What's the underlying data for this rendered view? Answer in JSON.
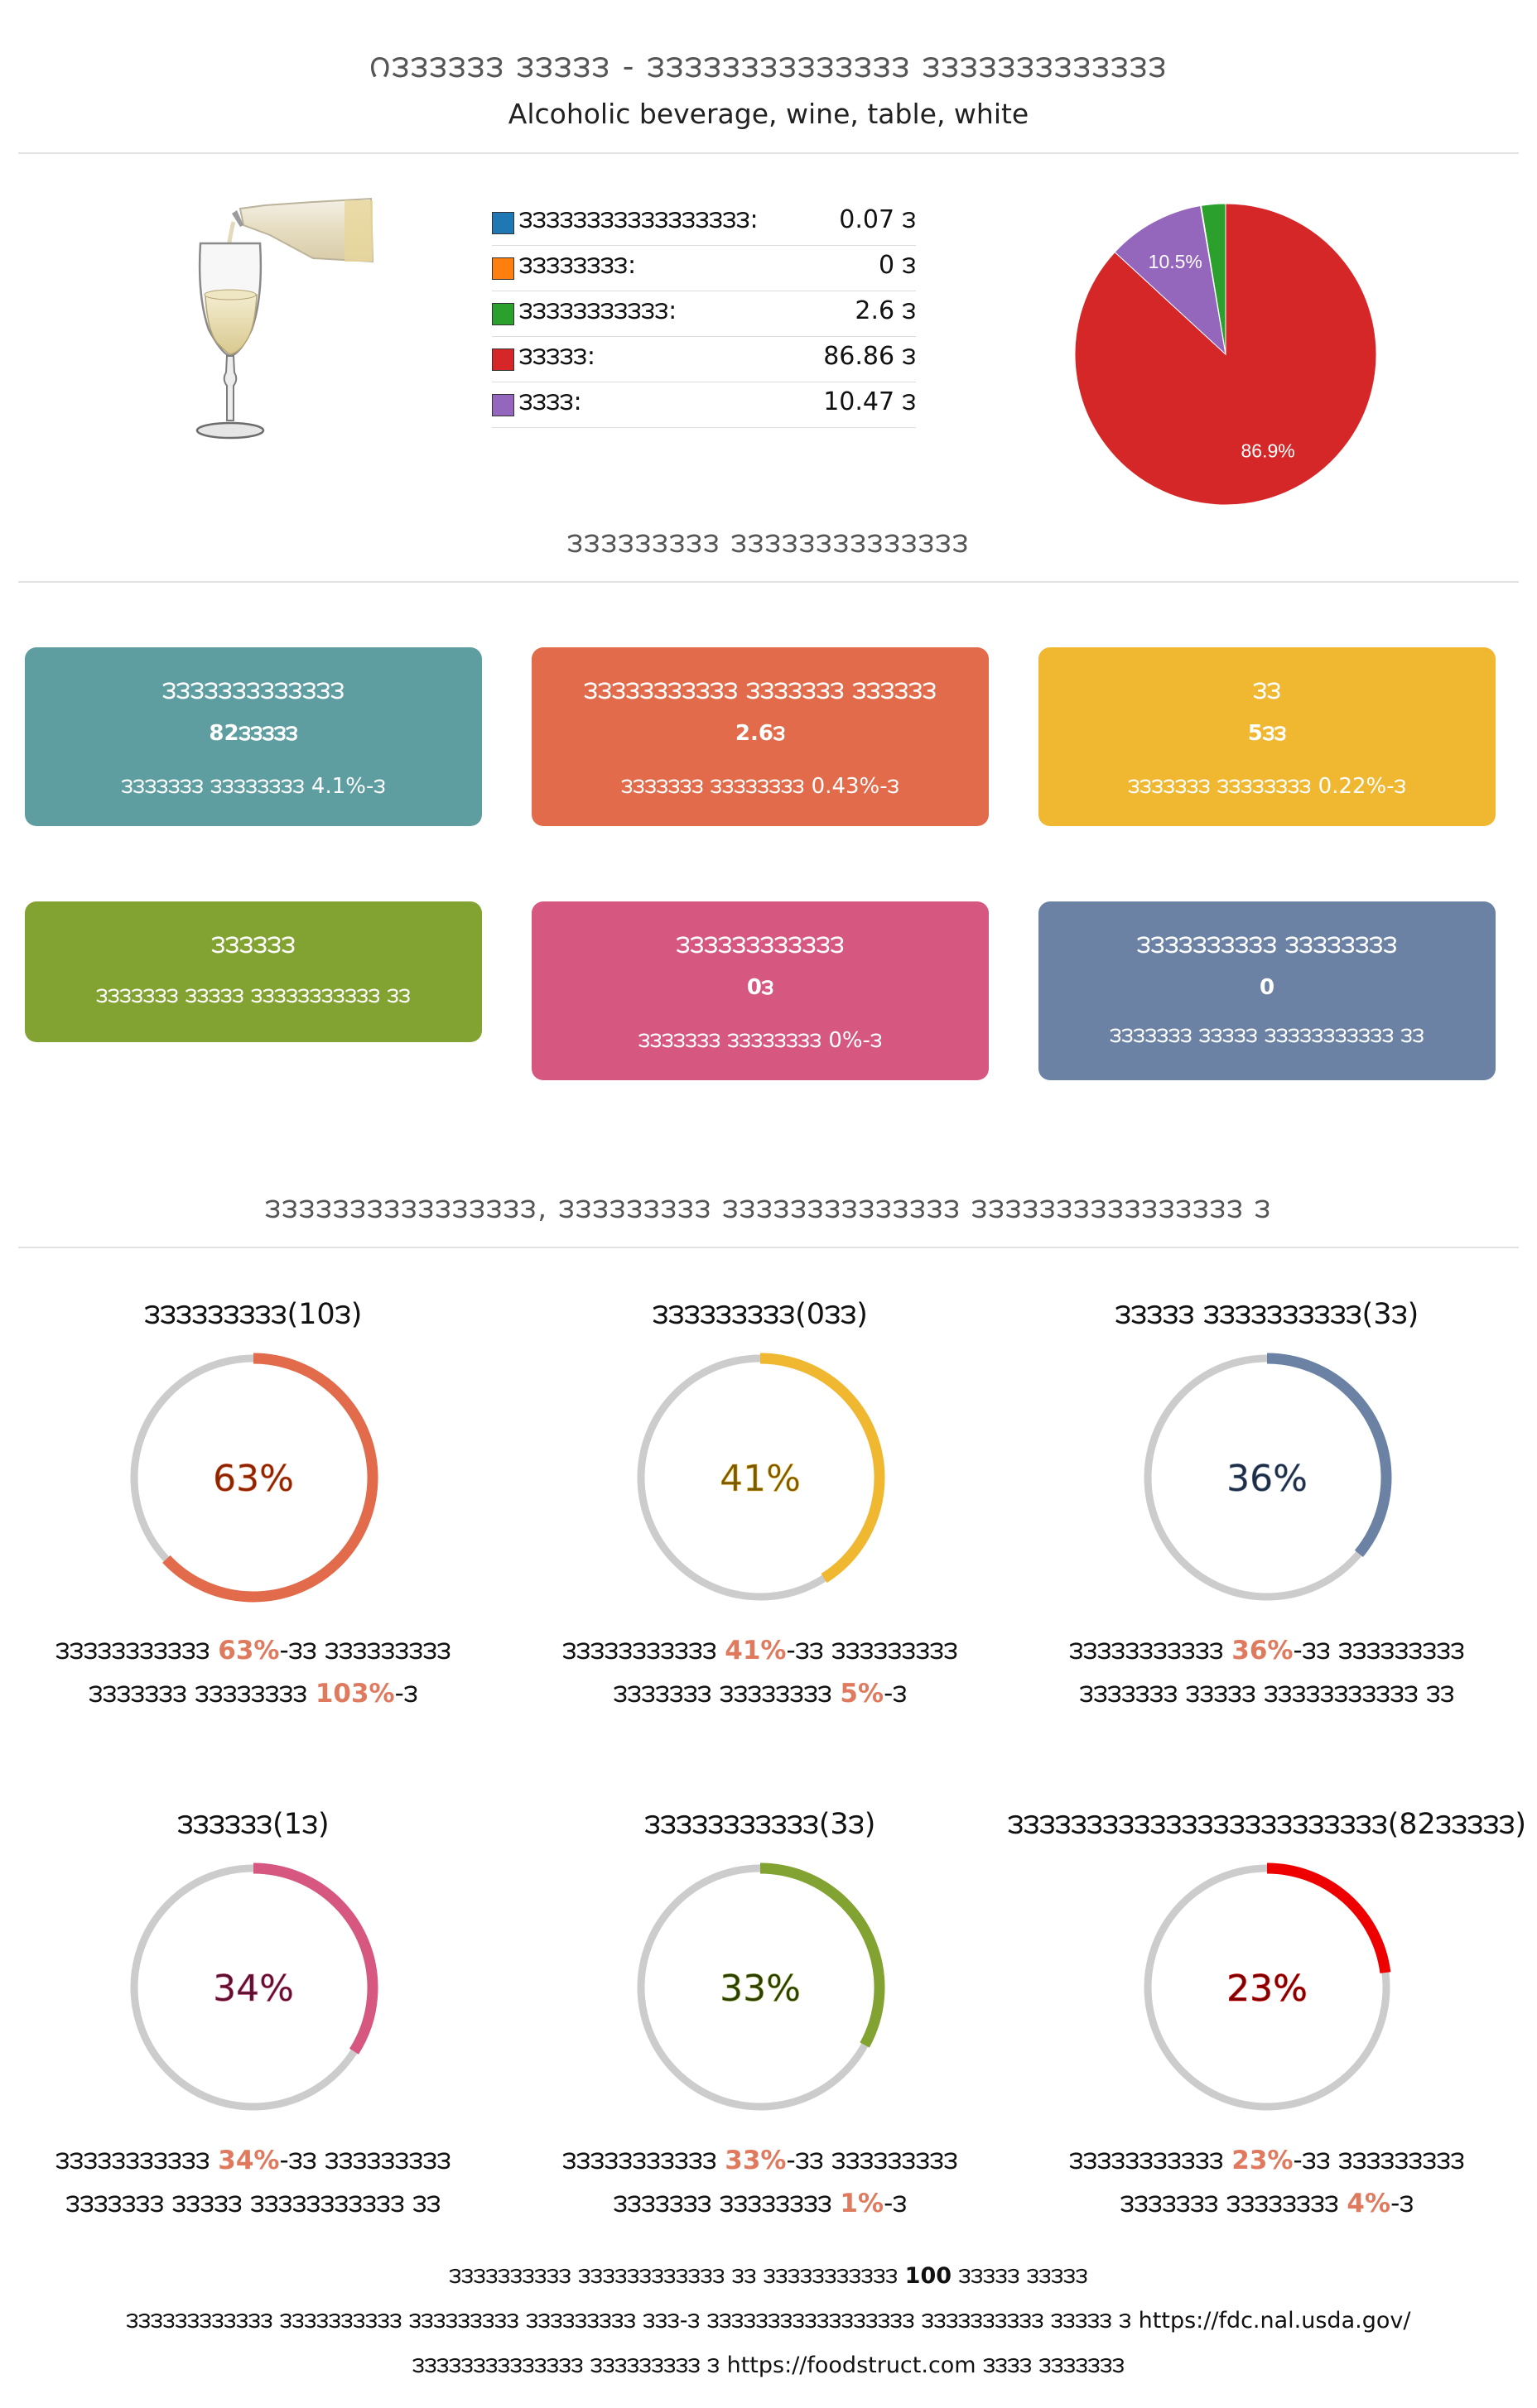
{
  "header": {
    "title": "౧౩౩౩౩౩౩ ౩౩౩౩౩ - ౩౩౩౩౩౩౩౩౩౩౩౩౩౩ ౩౩౩౩౩౩౩౩౩౩౩౩౩",
    "subtitle": "Alcoholic beverage, wine, table, white"
  },
  "legend": [
    {
      "label": "౩౩౩౩౩౩౩౩౩౩౩౩౩౩౩౩౩:",
      "value": "0.07 ౩",
      "color": "#1f77b4"
    },
    {
      "label": "౩౩౩౩౩౩౩౩:",
      "value": "0 ౩",
      "color": "#ff7f0e"
    },
    {
      "label": "౩౩౩౩౩౩౩౩౩౩౩:",
      "value": "2.6 ౩",
      "color": "#2ca02c"
    },
    {
      "label": "౩౩౩౩౩:",
      "value": "86.86 ౩",
      "color": "#d62728"
    },
    {
      "label": "౩౩౩౩:",
      "value": "10.47 ౩",
      "color": "#9467bd"
    }
  ],
  "chart_data": {
    "type": "pie",
    "categories": [
      "౩౩౩౩౩౩౩౩౩౩౩౩౩౩౩౩౩",
      "౩౩౩౩౩౩౩౩",
      "౩౩౩౩౩౩౩౩౩౩౩",
      "౩౩౩౩౩",
      "౩౩౩౩"
    ],
    "values": [
      0.07,
      0,
      2.6,
      86.86,
      10.47
    ],
    "colors": [
      "#1f77b4",
      "#ff7f0e",
      "#2ca02c",
      "#d62728",
      "#9467bd"
    ],
    "slice_labels": {
      "3": "86.9%",
      "4": "10.5%"
    }
  },
  "nutrition_section_title": "౩౩౩౩౩౩౩౩౩ ౩౩౩౩౩౩౩౩౩౩౩౩౩౩",
  "boxes": [
    {
      "title": "౩౩౩౩౩౩౩౩౩౩౩౩౩",
      "value": "82౩౩౩౩౩",
      "desc": "౩౩౩౩౩౩౩ ౩౩౩౩౩౩౩౩ 4.1%-౩",
      "color": "#5f9ea0"
    },
    {
      "title": "౩౩౩౩౩౩౩౩౩౩౩ ౩౩౩౩౩౩౩ ౩౩౩౩౩౩",
      "value": "2.6౩",
      "desc": "౩౩౩౩౩౩౩ ౩౩౩౩౩౩౩౩ 0.43%-౩",
      "color": "#e16b4a"
    },
    {
      "title": "౩౩",
      "value": "5౩౩",
      "desc": "౩౩౩౩౩౩౩ ౩౩౩౩౩౩౩౩ 0.22%-౩",
      "color": "#f0b731"
    },
    {
      "title": "౩౩౩౩౩౩",
      "value": "",
      "desc": "౩౩౩౩౩౩౩ ౩౩౩౩౩ ౩౩౩౩౩౩౩౩౩౩౩ ౩౩",
      "color": "#82a332"
    },
    {
      "title": "౩౩౩౩౩౩౩౩౩౩౩౩",
      "value": "0౩",
      "desc": "౩౩౩౩౩౩౩ ౩౩౩౩౩౩౩౩ 0%-౩",
      "color": "#d65881"
    },
    {
      "title": "౩౩౩౩౩౩౩౩౩౩ ౩౩౩౩౩౩౩౩",
      "value": "0",
      "desc": "౩౩౩౩౩౩౩ ౩౩౩౩౩ ౩౩౩౩౩౩౩౩౩౩౩ ౩౩",
      "color": "#6b82a4"
    }
  ],
  "rings_section_title": "౩౩౩౩౩౩౩౩౩౩౩౩౩౩౩౩, ౩౩౩౩౩౩౩౩౩ ౩౩౩౩౩౩౩౩౩౩౩౩౩౩ ౩౩౩౩౩౩౩౩౩౩౩౩౩౩౩౩ ౩",
  "rings": [
    {
      "title": "౩౩౩౩౩౩౩౩౩(10౩)",
      "percent": 63,
      "label": "63%",
      "color": "#e16b4a",
      "text_color": "#8b2500",
      "desc_pre": "౩౩౩౩౩౩౩౩౩౩౩ ",
      "desc_hl1": "63%",
      "desc_mid": "-౩౩ ౩౩౩౩౩౩౩౩౩",
      "desc_line2_pre": "౩౩౩౩౩౩౩ ౩౩౩౩౩౩౩౩ ",
      "desc_hl2": "103%",
      "desc_line2_post": "-౩"
    },
    {
      "title": "౩౩౩౩౩౩౩౩౩(0౩౩)",
      "percent": 41,
      "label": "41%",
      "color": "#f0b731",
      "text_color": "#7a5a00",
      "desc_pre": "౩౩౩౩౩౩౩౩౩౩౩ ",
      "desc_hl1": "41%",
      "desc_mid": "-౩౩ ౩౩౩౩౩౩౩౩౩",
      "desc_line2_pre": "౩౩౩౩౩౩౩ ౩౩౩౩౩౩౩౩ ",
      "desc_hl2": "5%",
      "desc_line2_post": "-౩"
    },
    {
      "title": "౩౩౩౩౩ ౩౩౩౩౩౩౩౩౩౩(3౩)",
      "percent": 36,
      "label": "36%",
      "color": "#6b82a4",
      "text_color": "#1f2d44",
      "desc_pre": "౩౩౩౩౩౩౩౩౩౩౩ ",
      "desc_hl1": "36%",
      "desc_mid": "-౩౩ ౩౩౩౩౩౩౩౩౩",
      "desc_line2_pre": "౩౩౩౩౩౩౩ ౩౩౩౩౩ ౩౩౩౩౩౩౩౩౩౩౩ ౩౩",
      "desc_hl2": "",
      "desc_line2_post": ""
    },
    {
      "title": "౩౩౩౩౩౩(1౩)",
      "percent": 34,
      "label": "34%",
      "color": "#d65881",
      "text_color": "#5a1030",
      "desc_pre": "౩౩౩౩౩౩౩౩౩౩౩ ",
      "desc_hl1": "34%",
      "desc_mid": "-౩౩ ౩౩౩౩౩౩౩౩౩",
      "desc_line2_pre": "౩౩౩౩౩౩౩ ౩౩౩౩౩ ౩౩౩౩౩౩౩౩౩౩౩ ౩౩",
      "desc_hl2": "",
      "desc_line2_post": ""
    },
    {
      "title": "౩౩౩౩౩౩౩౩౩౩౩(3౩)",
      "percent": 33,
      "label": "33%",
      "color": "#82a332",
      "text_color": "#2d3d00",
      "desc_pre": "౩౩౩౩౩౩౩౩౩౩౩ ",
      "desc_hl1": "33%",
      "desc_mid": "-౩౩ ౩౩౩౩౩౩౩౩౩",
      "desc_line2_pre": "౩౩౩౩౩౩౩ ౩౩౩౩౩౩౩౩ ",
      "desc_hl2": "1%",
      "desc_line2_post": "-౩"
    },
    {
      "title": "౩౩౩౩౩౩౩౩౩౩౩౩౩౩౩౩౩౩౩౩౩౩౩౩(82౩౩౩౩౩)",
      "percent": 23,
      "label": "23%",
      "color": "#ee0000",
      "text_color": "#7a0000",
      "desc_pre": "౩౩౩౩౩౩౩౩౩౩౩ ",
      "desc_hl1": "23%",
      "desc_mid": "-౩౩ ౩౩౩౩౩౩౩౩౩",
      "desc_line2_pre": "౩౩౩౩౩౩౩ ౩౩౩౩౩౩౩౩ ",
      "desc_hl2": "4%",
      "desc_line2_post": "-౩"
    }
  ],
  "footer": {
    "line1_pre": "౩౩౩౩౩౩౩౩౩౩ ౩౩౩౩౩౩౩౩౩౩౩౩ ౩౩ ౩౩౩౩౩౩౩౩౩౩౩ ",
    "line1_bold": "100",
    "line1_post": " ౩౩౩౩౩ ౩౩౩౩౩",
    "line2": "౩౩౩౩౩౩౩౩౩౩౩౩ ౩౩౩౩౩౩౩౩౩౩ ౩౩౩౩౩౩౩౩౩ ౩౩౩౩౩౩౩౩౩ ౩౩౩-౩ ౩౩౩౩౩౩౩౩౩౩౩౩౩౩౩౩౩ ౩౩౩౩౩౩౩౩౩౩ ౩౩౩౩౩ ౩ https://fdc.nal.usda.gov/",
    "line3": "౩౩౩౩౩౩౩౩౩౩౩౩౩౩ ౩౩౩౩౩౩౩౩౩ ౩ https://foodstruct.com ౩౩౩౩ ౩౩౩౩౩౩౩"
  }
}
